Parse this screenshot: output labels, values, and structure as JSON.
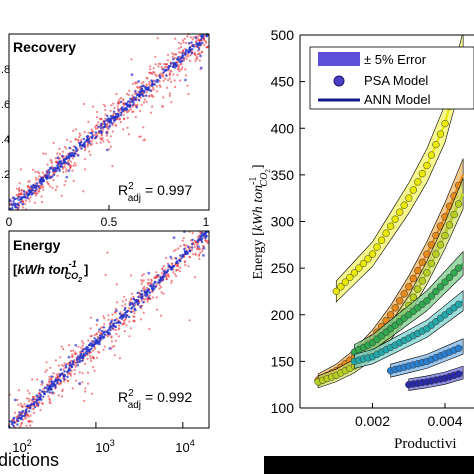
{
  "chart_data": [
    {
      "type": "scatter",
      "panel_label": "Recovery",
      "xlim": [
        0,
        1
      ],
      "x_ticks": [
        "0",
        "0.5",
        "1"
      ],
      "y_tick_fragments": [
        ".8",
        ".6",
        ".4",
        ".2"
      ],
      "annotation": {
        "main": "R",
        "sup": "2",
        "sub": "adj",
        "value": "= 0.997"
      },
      "series": [
        {
          "role": "scatter",
          "color": "#e8202a",
          "points": "y = x with noise, x in [0, 1]"
        },
        {
          "role": "dense-core",
          "color": "#2233cc"
        }
      ],
      "grid": false
    },
    {
      "type": "scatter",
      "panel_label": "Energy",
      "unit_label": {
        "open": "[",
        "kwh": "kWh ton",
        "sup": "-1",
        "sub": "CO",
        "sub2": "2",
        "close": "]"
      },
      "x_scale": "log",
      "xlim": [
        100,
        20000
      ],
      "x_ticks": [
        {
          "base": "10",
          "exp": "2",
          "value": 100
        },
        {
          "base": "10",
          "exp": "3",
          "value": 1000
        },
        {
          "base": "10",
          "exp": "4",
          "value": 10000
        }
      ],
      "annotation": {
        "main": "R",
        "sup": "2",
        "sub": "adj",
        "value": "= 0.992"
      },
      "grid": false
    },
    {
      "type": "line",
      "ylabel": {
        "prefix": "Energy [",
        "kwh": "kWh ton",
        "sup": "-1",
        "sub": "CO",
        "sub2": "2",
        "suffix": "]"
      },
      "xlabel": "Productivi",
      "ylim": [
        100,
        500
      ],
      "y_ticks": [
        100,
        150,
        200,
        250,
        300,
        350,
        400,
        450,
        500
      ],
      "xlim": [
        0,
        0.0048
      ],
      "x_ticks": [
        {
          "value": 0.002,
          "label": "0.002"
        },
        {
          "value": 0.004,
          "label": "0.004"
        }
      ],
      "legend": {
        "placement": "top-right",
        "entries": [
          {
            "label": "± 5% Error",
            "swatch": "band",
            "color": "#5a4fd6"
          },
          {
            "label": "PSA Model",
            "swatch": "marker",
            "color": "#4a3fc4"
          },
          {
            "label": "ANN Model",
            "swatch": "line",
            "color": "#141a8c"
          }
        ]
      },
      "series": [
        {
          "color": "#e8e800",
          "band": "#f4f46a",
          "x": [
            0.001,
            0.0015,
            0.002,
            0.0025,
            0.003,
            0.0035,
            0.004,
            0.0045
          ],
          "y": [
            225,
            245,
            265,
            295,
            325,
            360,
            405,
            480
          ]
        },
        {
          "color": "#e58a1a",
          "band": "#f2b564",
          "x": [
            0.0005,
            0.001,
            0.0015,
            0.002,
            0.0025,
            0.003,
            0.0035,
            0.004,
            0.0045
          ],
          "y": [
            130,
            140,
            155,
            175,
            200,
            230,
            265,
            305,
            350
          ]
        },
        {
          "color": "#b8cf22",
          "band": "#d6e46a",
          "x": [
            0.0005,
            0.001,
            0.0015,
            0.002,
            0.0025,
            0.003,
            0.0035,
            0.004,
            0.0045
          ],
          "y": [
            128,
            135,
            145,
            160,
            182,
            210,
            245,
            285,
            330
          ]
        },
        {
          "color": "#31a84f",
          "band": "#7ccb8a",
          "x": [
            0.0015,
            0.002,
            0.0025,
            0.003,
            0.0035,
            0.004,
            0.0045
          ],
          "y": [
            160,
            170,
            185,
            200,
            215,
            235,
            255
          ]
        },
        {
          "color": "#25a6a8",
          "band": "#7dd3d1",
          "x": [
            0.0015,
            0.002,
            0.0025,
            0.003,
            0.0035,
            0.004,
            0.0045
          ],
          "y": [
            150,
            155,
            165,
            175,
            185,
            200,
            215
          ]
        },
        {
          "color": "#2b7fd0",
          "band": "#7eb4e8",
          "x": [
            0.0025,
            0.003,
            0.0035,
            0.004,
            0.0045
          ],
          "y": [
            140,
            145,
            150,
            158,
            166
          ]
        },
        {
          "color": "#2a2aa8",
          "band": "#6e6ed8",
          "x": [
            0.003,
            0.0035,
            0.004,
            0.0045
          ],
          "y": [
            125,
            128,
            132,
            138
          ]
        }
      ]
    }
  ],
  "bottom_label": "dictions"
}
